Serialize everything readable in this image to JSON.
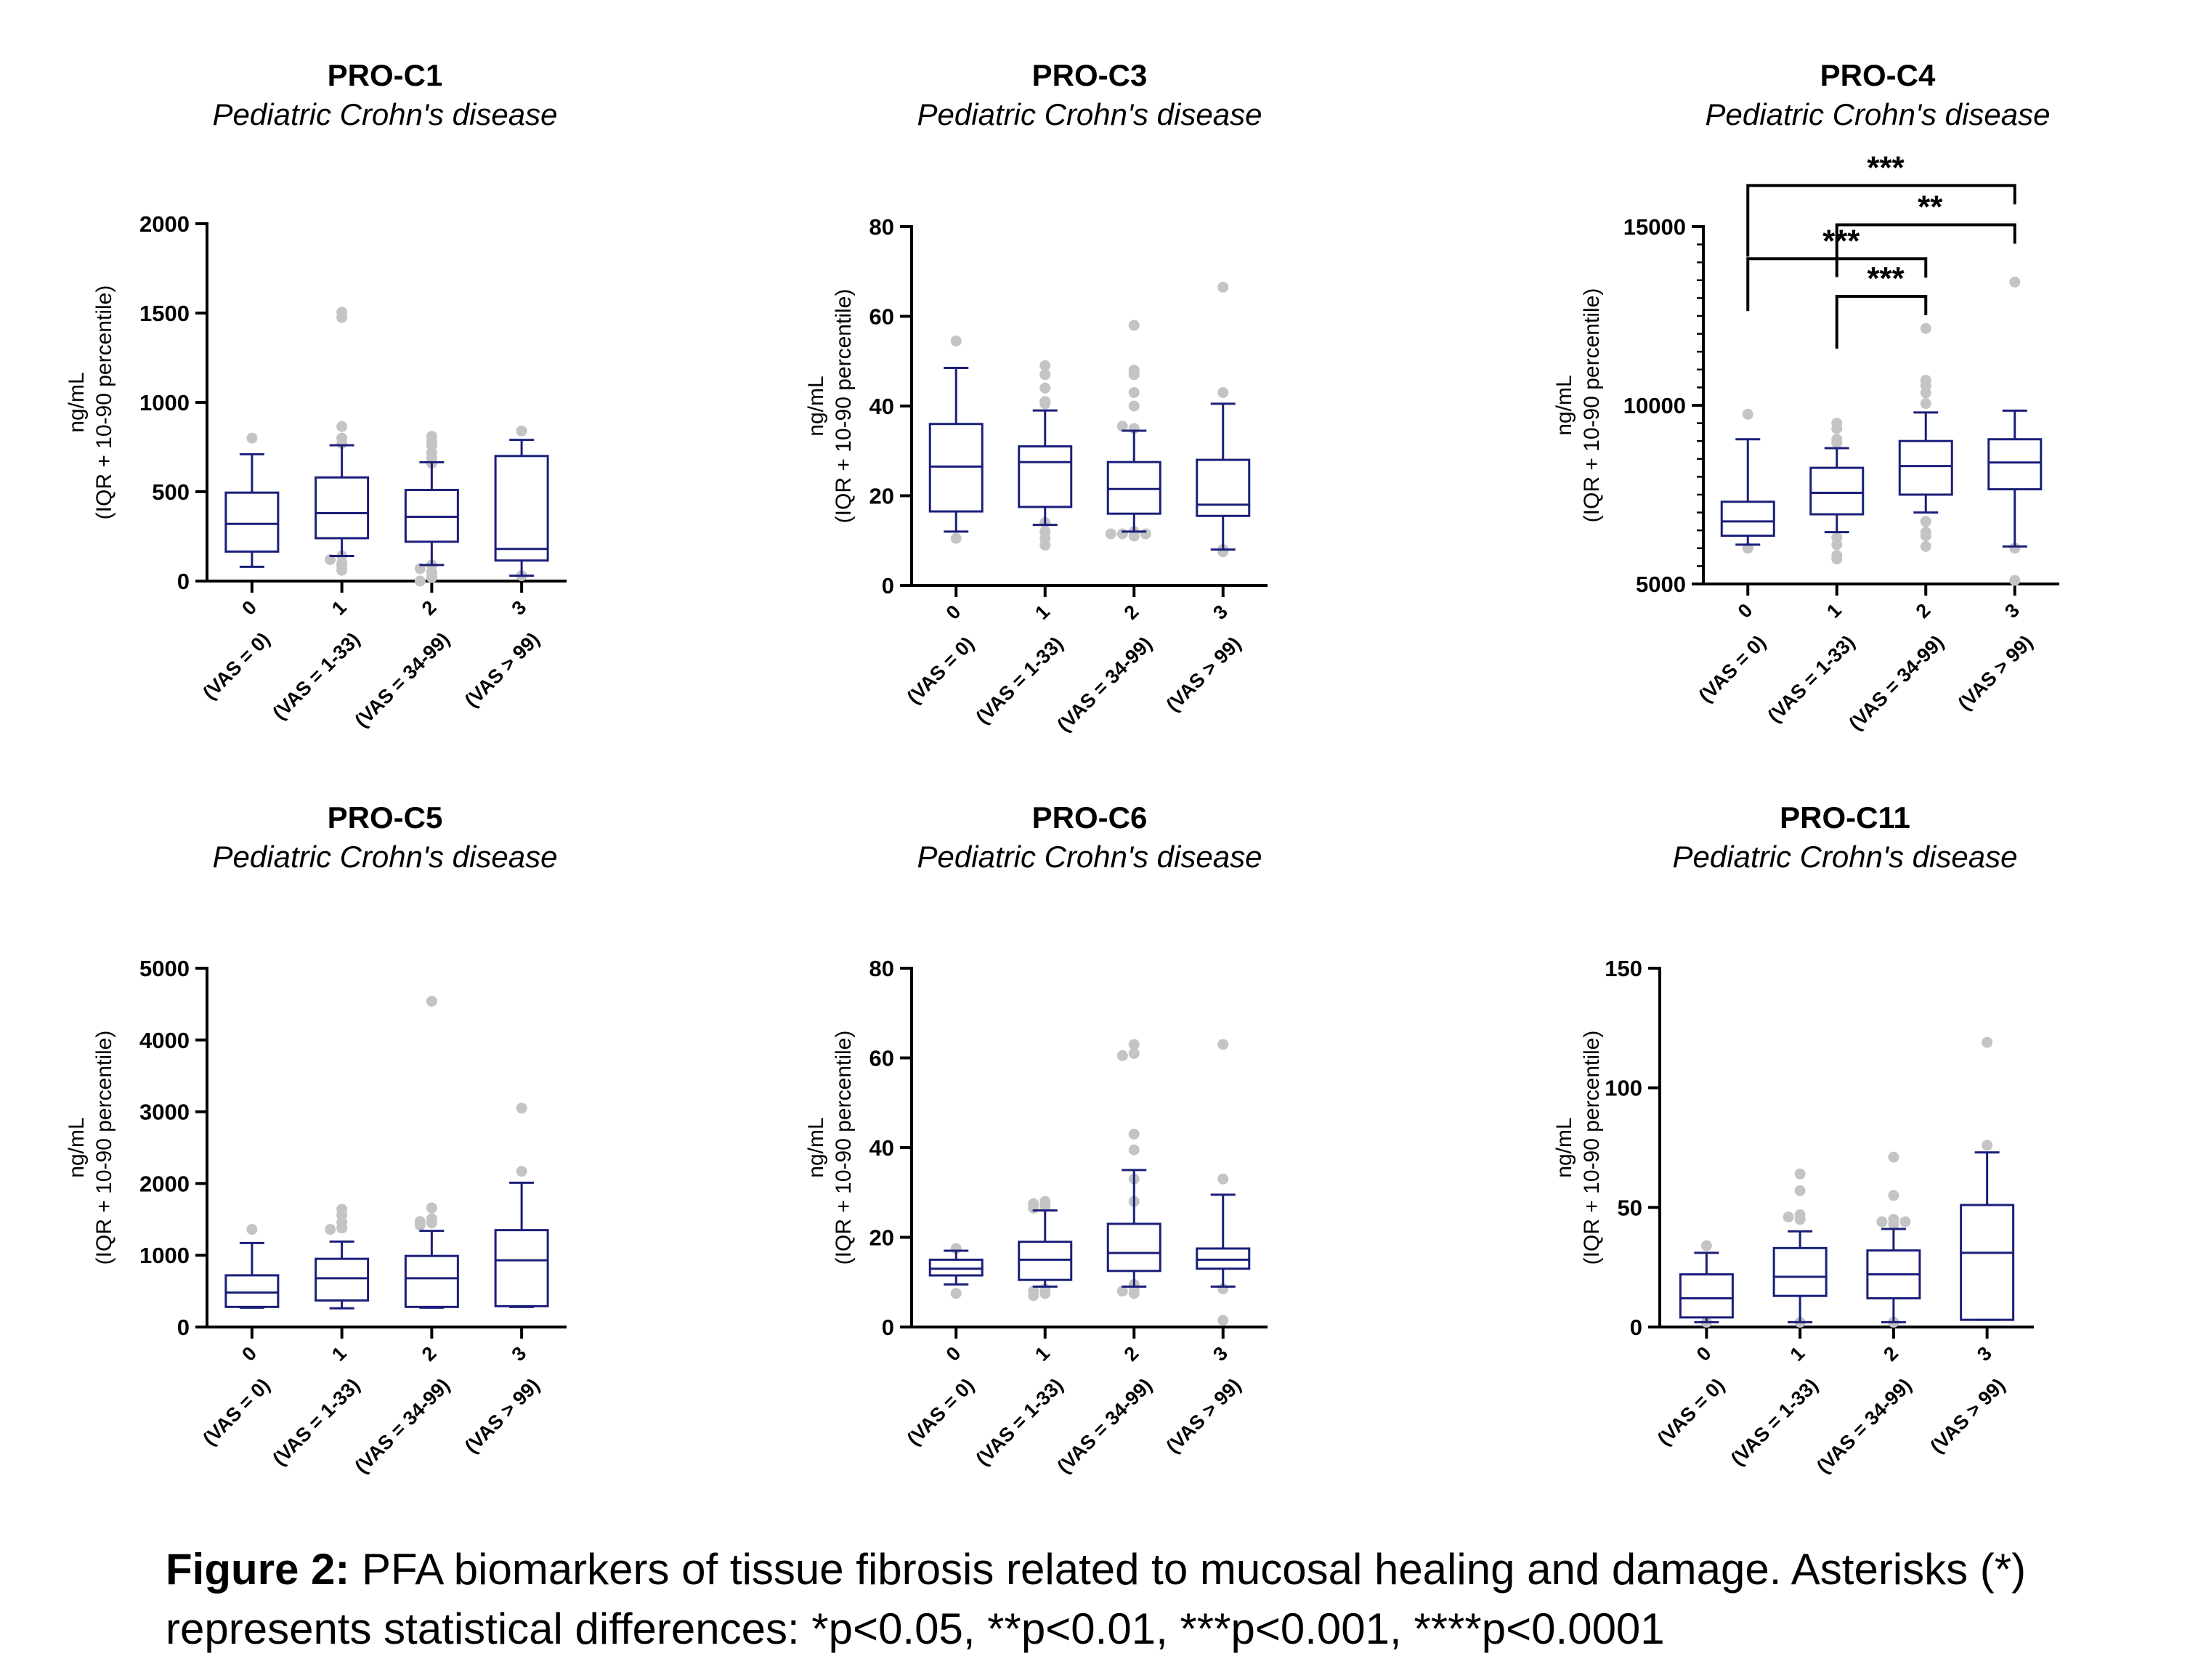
{
  "colors": {
    "box": "#1a1f7a",
    "outlier": "#c4c4c4",
    "axis": "#000000"
  },
  "caption": {
    "label": "Figure 2:",
    "text": " PFA biomarkers of tissue fibrosis related to mucosal healing and damage. Asterisks (*) represents statistical differences: *p<0.05, **p<0.01, ***p<0.001, ****p<0.0001"
  },
  "chart_data": [
    {
      "type": "box",
      "title": "PRO-C1",
      "subtitle": "Pediatric Crohn's disease",
      "ylabel": [
        "ng/mL",
        "(IQR + 10-90 percentile)"
      ],
      "ylim": [
        0,
        2000
      ],
      "yticks": [
        0,
        500,
        1000,
        1500,
        2000
      ],
      "categories": [
        "0",
        "1",
        "2",
        "3"
      ],
      "category_sublabels": [
        "(VAS = 0)",
        "(VAS = 1-33)",
        "(VAS = 34-99)",
        "(VAS > 99)"
      ],
      "boxes": [
        {
          "p10": 80,
          "q1": 165,
          "median": 320,
          "q3": 495,
          "p90": 710,
          "outliers": [
            800
          ]
        },
        {
          "p10": 140,
          "q1": 240,
          "median": 380,
          "q3": 580,
          "p90": 760,
          "outliers": [
            1505,
            1475,
            865,
            800,
            770,
            140,
            120,
            100,
            85,
            60
          ]
        },
        {
          "p10": 90,
          "q1": 220,
          "median": 360,
          "q3": 510,
          "p90": 665,
          "outliers": [
            810,
            780,
            760,
            720,
            690,
            660,
            90,
            70,
            50,
            40,
            20,
            0
          ]
        },
        {
          "p10": 30,
          "q1": 115,
          "median": 180,
          "q3": 700,
          "p90": 790,
          "outliers": [
            840,
            30
          ]
        }
      ],
      "significance": []
    },
    {
      "type": "box",
      "title": "PRO-C3",
      "subtitle": "Pediatric Crohn's disease",
      "ylabel": [
        "ng/mL",
        "(IQR + 10-90 percentile)"
      ],
      "ylim": [
        0,
        80
      ],
      "yticks": [
        0,
        20,
        40,
        60,
        80
      ],
      "categories": [
        "0",
        "1",
        "2",
        "3"
      ],
      "category_sublabels": [
        "(VAS = 0)",
        "(VAS = 1-33)",
        "(VAS = 34-99)",
        "(VAS > 99)"
      ],
      "boxes": [
        {
          "p10": 12,
          "q1": 16.5,
          "median": 26.5,
          "q3": 36,
          "p90": 48.5,
          "outliers": [
            54.5,
            10.5
          ]
        },
        {
          "p10": 13.5,
          "q1": 17.5,
          "median": 27.5,
          "q3": 31,
          "p90": 39,
          "outliers": [
            49,
            47,
            44,
            41,
            40.5,
            14,
            12,
            10.5,
            9
          ]
        },
        {
          "p10": 12,
          "q1": 16,
          "median": 21.5,
          "q3": 27.5,
          "p90": 34.5,
          "outliers": [
            58,
            48,
            47,
            43,
            40,
            35,
            35.5,
            12,
            11.5,
            11.5,
            11,
            11.5
          ]
        },
        {
          "p10": 8,
          "q1": 15.5,
          "median": 18,
          "q3": 28,
          "p90": 40.5,
          "outliers": [
            66.5,
            43,
            8,
            7.5
          ]
        }
      ],
      "significance": []
    },
    {
      "type": "box",
      "title": "PRO-C4",
      "subtitle": "Pediatric Crohn's disease",
      "ylabel": [
        "ng/mL",
        "(IQR + 10-90 percentile)"
      ],
      "ylim": [
        5000,
        15000
      ],
      "yticks": [
        5000,
        10000,
        15000
      ],
      "minor_ticks": true,
      "categories": [
        "0",
        "1",
        "2",
        "3"
      ],
      "category_sublabels": [
        "(VAS = 0)",
        "(VAS = 1-33)",
        "(VAS = 34-99)",
        "(VAS > 99)"
      ],
      "boxes": [
        {
          "p10": 6100,
          "q1": 6350,
          "median": 6750,
          "q3": 7300,
          "p90": 9050,
          "outliers": [
            9750,
            6000
          ]
        },
        {
          "p10": 6450,
          "q1": 6950,
          "median": 7550,
          "q3": 8250,
          "p90": 8800,
          "outliers": [
            9500,
            9350,
            9050,
            8950,
            6300,
            6100,
            5800,
            5700
          ]
        },
        {
          "p10": 7000,
          "q1": 7500,
          "median": 8300,
          "q3": 9000,
          "p90": 9800,
          "outliers": [
            12150,
            10700,
            10550,
            10350,
            10050,
            6750,
            6450,
            6350,
            6050
          ]
        },
        {
          "p10": 6050,
          "q1": 7650,
          "median": 8400,
          "q3": 9050,
          "p90": 9850,
          "outliers": [
            13450,
            6000,
            5100
          ]
        }
      ],
      "significance": [
        {
          "from": 0,
          "to": 3,
          "label": "***",
          "y": 16150
        },
        {
          "from": 1,
          "to": 3,
          "label": "**",
          "y": 15050
        },
        {
          "from": 0,
          "to": 2,
          "label": "***",
          "y": 14100
        },
        {
          "from": 1,
          "to": 2,
          "label": "***",
          "y": 13050
        }
      ]
    },
    {
      "type": "box",
      "title": "PRO-C5",
      "subtitle": "Pediatric Crohn's disease",
      "ylabel": [
        "ng/mL",
        "(IQR + 10-90 percentile)"
      ],
      "ylim": [
        0,
        5000
      ],
      "yticks": [
        0,
        1000,
        2000,
        3000,
        4000,
        5000
      ],
      "categories": [
        "0",
        "1",
        "2",
        "3"
      ],
      "category_sublabels": [
        "(VAS = 0)",
        "(VAS = 1-33)",
        "(VAS = 34-99)",
        "(VAS > 99)"
      ],
      "boxes": [
        {
          "p10": 270,
          "q1": 280,
          "median": 480,
          "q3": 720,
          "p90": 1170,
          "outliers": [
            1360
          ]
        },
        {
          "p10": 260,
          "q1": 370,
          "median": 680,
          "q3": 950,
          "p90": 1190,
          "outliers": [
            1640,
            1560,
            1460,
            1380,
            1360
          ]
        },
        {
          "p10": 270,
          "q1": 280,
          "median": 680,
          "q3": 990,
          "p90": 1340,
          "outliers": [
            4540,
            1660,
            1510,
            1470,
            1450,
            1420
          ]
        },
        {
          "p10": 280,
          "q1": 290,
          "median": 930,
          "q3": 1350,
          "p90": 2010,
          "outliers": [
            3050,
            2170
          ]
        }
      ],
      "significance": []
    },
    {
      "type": "box",
      "title": "PRO-C6",
      "subtitle": "Pediatric Crohn's disease",
      "ylabel": [
        "ng/mL",
        "(IQR + 10-90 percentile)"
      ],
      "ylim": [
        0,
        80
      ],
      "yticks": [
        0,
        20,
        40,
        60,
        80
      ],
      "categories": [
        "0",
        "1",
        "2",
        "3"
      ],
      "category_sublabels": [
        "(VAS = 0)",
        "(VAS = 1-33)",
        "(VAS = 34-99)",
        "(VAS > 99)"
      ],
      "boxes": [
        {
          "p10": 9.5,
          "q1": 11.5,
          "median": 13,
          "q3": 15,
          "p90": 17,
          "outliers": [
            17.5,
            7.5
          ]
        },
        {
          "p10": 9,
          "q1": 10.5,
          "median": 15,
          "q3": 19,
          "p90": 26,
          "outliers": [
            28,
            27.5,
            27,
            26.5,
            8.5,
            8,
            7.5,
            7
          ]
        },
        {
          "p10": 9,
          "q1": 12.5,
          "median": 16.5,
          "q3": 23,
          "p90": 35,
          "outliers": [
            63,
            61,
            60.5,
            43,
            39.5,
            33,
            28,
            9.5,
            8.5,
            8,
            7.5
          ]
        },
        {
          "p10": 9,
          "q1": 13,
          "median": 15,
          "q3": 17.5,
          "p90": 29.5,
          "outliers": [
            63,
            33,
            8.5,
            1.5
          ]
        }
      ],
      "significance": []
    },
    {
      "type": "box",
      "title": "PRO-C11",
      "subtitle": "Pediatric Crohn's disease",
      "ylabel": [
        "ng/mL",
        "(IQR + 10-90 percentile)"
      ],
      "ylim": [
        0,
        150
      ],
      "yticks": [
        0,
        50,
        100,
        150
      ],
      "categories": [
        "0",
        "1",
        "2",
        "3"
      ],
      "category_sublabels": [
        "(VAS = 0)",
        "(VAS = 1-33)",
        "(VAS = 34-99)",
        "(VAS > 99)"
      ],
      "boxes": [
        {
          "p10": 2,
          "q1": 4,
          "median": 12,
          "q3": 22,
          "p90": 31,
          "outliers": [
            34,
            2
          ]
        },
        {
          "p10": 2,
          "q1": 13,
          "median": 21,
          "q3": 33,
          "p90": 40,
          "outliers": [
            64,
            57,
            47,
            46,
            45,
            2
          ]
        },
        {
          "p10": 2,
          "q1": 12,
          "median": 22,
          "q3": 32,
          "p90": 41,
          "outliers": [
            71,
            55,
            45,
            44,
            44,
            43,
            2
          ]
        },
        {
          "p10": 3,
          "q1": 3,
          "median": 31,
          "q3": 51,
          "p90": 73,
          "outliers": [
            119,
            76
          ]
        }
      ],
      "significance": []
    }
  ]
}
